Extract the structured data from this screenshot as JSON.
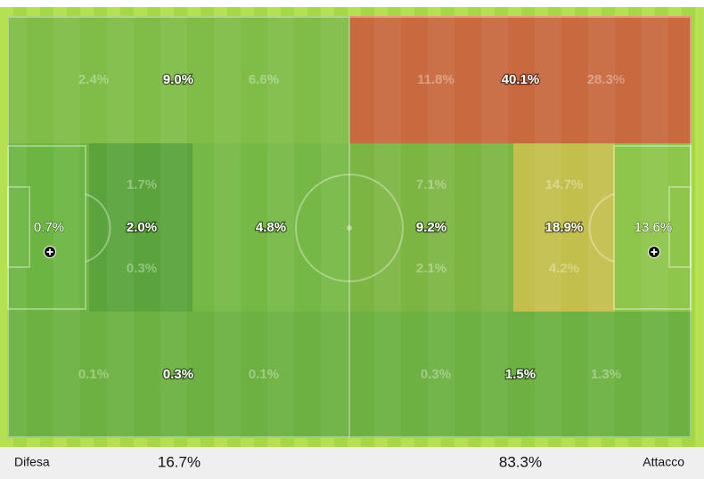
{
  "pitch": {
    "top_row": [
      [
        "2.4%",
        "9.0%",
        "6.6%"
      ],
      [
        "11.8%",
        "40.1%",
        "28.3%"
      ]
    ],
    "middle_row": [
      [
        "0.7%"
      ],
      [
        "1.7%",
        "2.0%",
        "0.3%"
      ],
      [
        "4.8%"
      ],
      [
        "7.1%",
        "9.2%",
        "2.1%"
      ],
      [
        "14.7%",
        "18.9%",
        "4.2%"
      ],
      [
        "13.6%"
      ]
    ],
    "bottom_row": [
      [
        "0.1%",
        "0.3%",
        "0.1%"
      ],
      [
        "0.3%",
        "1.5%",
        "1.3%"
      ]
    ]
  },
  "footer": {
    "left_label": "Difesa",
    "left_value": "16.7%",
    "right_value": "83.3%",
    "right_label": "Attacco"
  }
}
